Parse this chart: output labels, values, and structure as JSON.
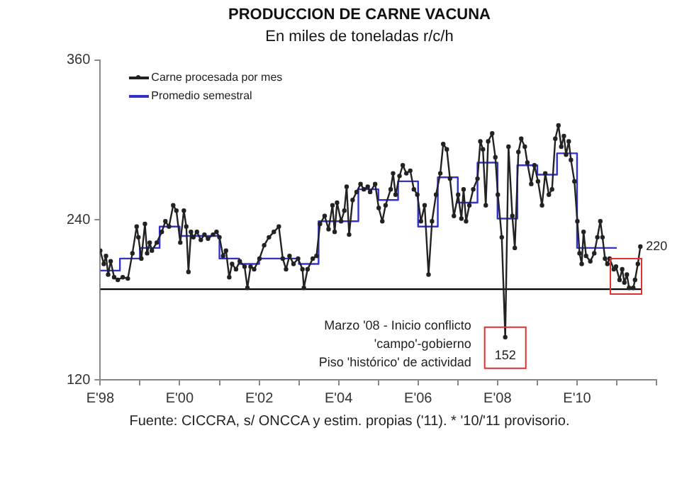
{
  "chart_data": {
    "type": "line",
    "title": "PRODUCCION DE CARNE VACUNA",
    "subtitle": "En miles de toneladas r/c/h",
    "xlim": [
      "1998-01",
      "2012-01"
    ],
    "xticks": [
      {
        "value": "1998-01",
        "label": "E'98"
      },
      {
        "value": "1999-01",
        "label": null
      },
      {
        "value": "2000-01",
        "label": "E'00"
      },
      {
        "value": "2001-01",
        "label": null
      },
      {
        "value": "2002-01",
        "label": "E'02"
      },
      {
        "value": "2003-01",
        "label": null
      },
      {
        "value": "2004-01",
        "label": "E'04"
      },
      {
        "value": "2005-01",
        "label": null
      },
      {
        "value": "2006-01",
        "label": "E'06"
      },
      {
        "value": "2007-01",
        "label": null
      },
      {
        "value": "2008-01",
        "label": "E'08"
      },
      {
        "value": "2009-01",
        "label": null
      },
      {
        "value": "2010-01",
        "label": "E'10"
      },
      {
        "value": "2011-01",
        "label": null
      },
      {
        "value": "2012-01",
        "label": null
      }
    ],
    "ylim": [
      120,
      360
    ],
    "yticks": [
      120,
      240,
      360
    ],
    "legend": "top left",
    "marker": "circle",
    "series": [
      {
        "name": "Carne procesada por mes",
        "color": "#222222",
        "x": [
          "1998-01-01",
          "1998-02-03",
          "1998-02-23",
          "1998-03-15",
          "1998-04-07",
          "1998-05-09",
          "1998-06-12",
          "1998-07-27",
          "1998-09-12",
          "1998-10-24",
          "1998-12-02",
          "1998-12-18",
          "1999-01-14",
          "1999-02-16",
          "1999-03-08",
          "1999-04-01",
          "1999-04-21",
          "1999-06-05",
          "1999-07-21",
          "1999-08-23",
          "1999-09-25",
          "1999-11-03",
          "1999-12-02",
          "2000-01-07",
          "2000-02-09",
          "2000-03-02",
          "2000-03-22",
          "2000-04-14",
          "2000-05-06",
          "2000-06-08",
          "2000-07-14",
          "2000-08-16",
          "2000-09-18",
          "2000-11-03",
          "2000-12-05",
          "2001-01-01",
          "2001-02-03",
          "2001-03-02",
          "2001-04-01",
          "2001-04-27",
          "2001-06-02",
          "2001-07-07",
          "2001-08-20",
          "2001-09-15",
          "2001-10-14",
          "2001-11-16",
          "2002-01-04",
          "2002-02-16",
          "2002-04-01",
          "2002-05-16",
          "2002-07-01",
          "2002-08-06",
          "2002-09-05",
          "2002-10-07",
          "2002-11-13",
          "2002-12-25",
          "2003-02-03",
          "2003-02-16",
          "2003-03-22",
          "2003-05-09",
          "2003-06-12",
          "2003-07-14",
          "2003-08-26",
          "2003-10-01",
          "2003-11-06",
          "2003-11-26",
          "2003-12-18",
          "2004-01-24",
          "2004-02-23",
          "2004-03-15",
          "2004-04-07",
          "2004-05-09",
          "2004-06-15",
          "2004-07-21",
          "2004-08-20",
          "2004-09-25",
          "2004-10-17",
          "2004-12-02",
          "2005-01-04",
          "2005-02-06",
          "2005-03-08",
          "2005-04-24",
          "2005-05-16",
          "2005-06-08",
          "2005-07-14",
          "2005-08-13",
          "2005-09-15",
          "2005-10-21",
          "2005-11-23",
          "2005-12-25",
          "2006-01-27",
          "2006-03-02",
          "2006-04-07",
          "2006-05-09",
          "2006-06-15",
          "2006-07-24",
          "2006-08-20",
          "2006-09-22",
          "2006-10-21",
          "2006-11-26",
          "2007-01-04",
          "2007-02-03",
          "2007-02-23",
          "2007-03-18",
          "2007-04-17",
          "2007-05-23",
          "2007-07-01",
          "2007-07-27",
          "2007-08-20",
          "2007-09-15",
          "2007-10-07",
          "2007-11-13",
          "2007-12-12",
          "2008-01-04",
          "2008-02-09",
          "2008-03-12",
          "2008-04-11",
          "2008-05-16",
          "2008-06-08",
          "2008-07-11",
          "2008-08-06",
          "2008-09-08",
          "2008-10-01",
          "2008-11-06",
          "2008-12-05",
          "2009-01-07",
          "2009-02-13",
          "2009-03-15",
          "2009-04-17",
          "2009-05-16",
          "2009-06-15",
          "2009-07-14",
          "2009-08-09",
          "2009-09-02",
          "2009-09-22",
          "2009-10-17",
          "2009-11-06",
          "2009-12-08",
          "2010-01-04",
          "2010-01-24",
          "2010-02-13",
          "2010-03-02",
          "2010-03-25",
          "2010-05-03",
          "2010-06-08",
          "2010-07-07",
          "2010-08-03",
          "2010-08-23",
          "2010-09-15",
          "2010-10-07",
          "2010-10-27",
          "2010-12-05",
          "2010-12-25",
          "2011-01-27",
          "2011-02-20",
          "2011-03-12",
          "2011-04-04",
          "2011-04-24",
          "2011-06-02",
          "2011-06-18",
          "2011-07-14",
          "2011-08-06"
        ],
        "values": [
          217,
          207,
          213,
          199,
          209,
          197,
          195,
          197,
          196,
          215,
          235,
          227,
          211,
          237,
          215,
          223,
          217,
          223,
          231,
          239,
          235,
          251,
          247,
          223,
          247,
          235,
          201,
          231,
          227,
          231,
          225,
          229,
          226,
          229,
          231,
          227,
          213,
          217,
          197,
          207,
          203,
          209,
          205,
          189,
          205,
          203,
          211,
          221,
          227,
          231,
          235,
          211,
          203,
          213,
          207,
          211,
          203,
          189,
          203,
          211,
          213,
          237,
          243,
          233,
          251,
          231,
          253,
          239,
          247,
          265,
          229,
          255,
          261,
          267,
          263,
          265,
          261,
          267,
          249,
          239,
          251,
          263,
          275,
          259,
          273,
          281,
          275,
          277,
          263,
          259,
          239,
          251,
          199,
          239,
          259,
          275,
          297,
          293,
          271,
          243,
          259,
          241,
          263,
          239,
          251,
          263,
          271,
          299,
          293,
          251,
          299,
          305,
          287,
          259,
          227,
          152,
          295,
          243,
          219,
          291,
          301,
          295,
          283,
          267,
          281,
          269,
          251,
          275,
          259,
          263,
          301,
          311,
          295,
          303,
          289,
          299,
          285,
          269,
          239,
          215,
          207,
          231,
          213,
          209,
          215,
          227,
          239,
          227,
          211,
          207,
          211,
          203,
          205,
          195,
          203,
          193,
          199,
          189,
          189,
          195,
          207,
          220
        ],
        "value_labels": [
          null,
          null,
          null,
          null,
          null,
          null,
          null,
          null,
          null,
          null,
          null,
          null,
          null,
          null,
          null,
          null,
          null,
          null,
          null,
          null,
          null,
          null,
          null,
          null,
          null,
          null,
          null,
          null,
          null,
          null,
          null,
          null,
          null,
          null,
          null,
          null,
          null,
          null,
          null,
          null,
          null,
          null,
          null,
          null,
          null,
          null,
          null,
          null,
          null,
          null,
          null,
          null,
          null,
          null,
          null,
          null,
          null,
          null,
          null,
          null,
          null,
          null,
          null,
          null,
          null,
          null,
          null,
          null,
          null,
          null,
          null,
          null,
          null,
          null,
          null,
          null,
          null,
          null,
          null,
          null,
          null,
          null,
          null,
          null,
          null,
          null,
          null,
          null,
          null,
          null,
          null,
          null,
          null,
          null,
          null,
          null,
          null,
          null,
          null,
          null,
          null,
          null,
          null,
          null,
          null,
          null,
          null,
          null,
          null,
          null,
          null,
          null,
          null,
          null,
          null,
          "152",
          null,
          null,
          null,
          null,
          null,
          null,
          null,
          null,
          null,
          null,
          null,
          null,
          null,
          null,
          null,
          null,
          null,
          null,
          null,
          null,
          null,
          null,
          null,
          null,
          null,
          null,
          null,
          null,
          null,
          null,
          null,
          null,
          null,
          null,
          null,
          null,
          null,
          null,
          null,
          null,
          null,
          null,
          null,
          null,
          null,
          "220"
        ]
      },
      {
        "name": "Promedio semestral",
        "type": "step",
        "color": "#3333cc",
        "marker": "none",
        "x": [
          "1998-01",
          "1998-07",
          "1999-01",
          "1999-07",
          "2000-01",
          "2000-07",
          "2001-01",
          "2001-07",
          "2002-01",
          "2002-07",
          "2003-01",
          "2003-07",
          "2004-01",
          "2004-07",
          "2005-01",
          "2005-07",
          "2006-01",
          "2006-07",
          "2007-01",
          "2007-07",
          "2008-01",
          "2008-07",
          "2009-01",
          "2009-07",
          "2010-01",
          "2010-07",
          "2011-01"
        ],
        "values": [
          202,
          211,
          219,
          235,
          228,
          228,
          211,
          207,
          211,
          211,
          207,
          239,
          239,
          263,
          255,
          269,
          235,
          272,
          253,
          283,
          241,
          281,
          274,
          290,
          219,
          219,
          219
        ]
      },
      {
        "color": "#000000",
        "marker": "none",
        "x": [
          "1998-01-01",
          "2011-08-15"
        ],
        "values": [
          188,
          188
        ]
      }
    ],
    "annotations": [
      {
        "text": "Marzo '08 - Inicio conflicto\n'campo'-gobierno\nPiso 'histórico' de actividad",
        "x": "2008-03-12",
        "y": 152
      },
      "Fuente: CICCRA, s/ ONCCA y estim. propias ('11). * '10/'11 provisorio."
    ]
  }
}
